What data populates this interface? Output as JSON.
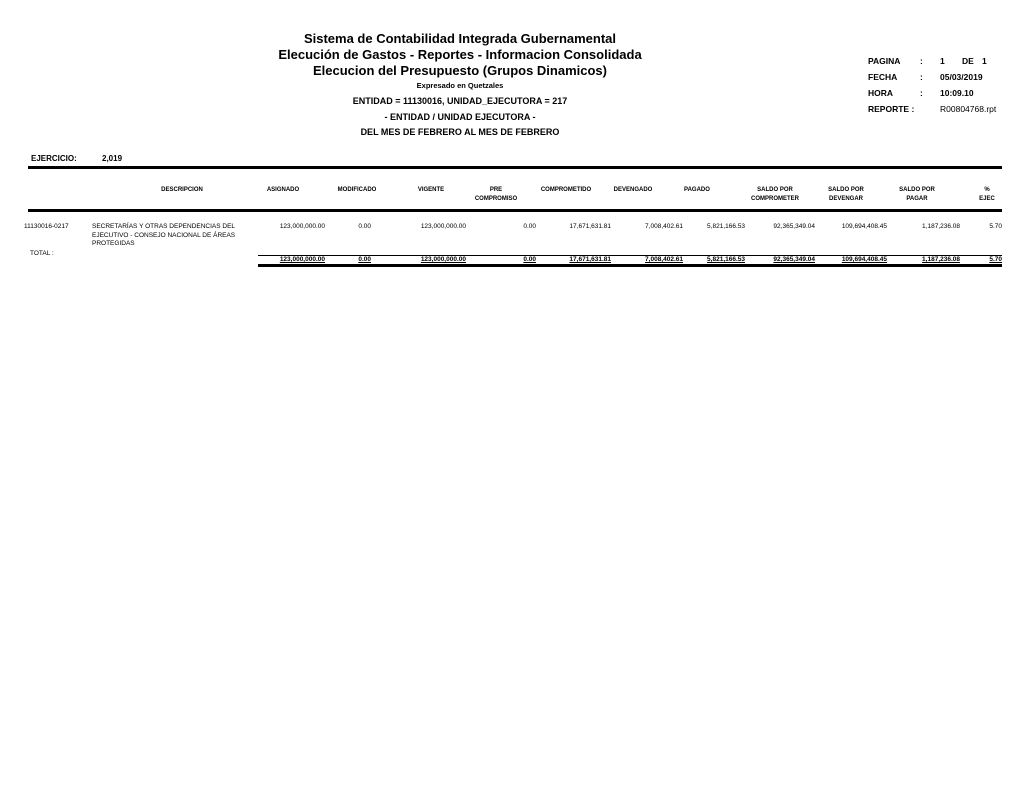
{
  "header": {
    "title1": "Sistema de Contabilidad Integrada Gubernamental",
    "title2": "Elecución de Gastos - Reportes - Informacion Consolidada",
    "title3": "Elecucion del Presupuesto (Grupos Dinamicos)",
    "currency": "Expresado en Quetzales",
    "filter": "ENTIDAD = 11130016, UNIDAD_EJECUTORA = 217",
    "grouping": "- ENTIDAD / UNIDAD EJECUTORA -",
    "period": "DEL MES DE FEBRERO AL MES DE FEBRERO"
  },
  "meta": {
    "pagina_label": "PAGINA",
    "pagina": "1",
    "de_label": "DE",
    "total_pages": "1",
    "fecha_label": "FECHA",
    "fecha": "05/03/2019",
    "hora_label": "HORA",
    "hora": "10:09.10",
    "reporte_label": "REPORTE :",
    "reporte": "R00804768.rpt",
    "sep": ":"
  },
  "ejercicio": {
    "label": "EJERCICIO:",
    "value": "2,019"
  },
  "columns": [
    "DESCRIPCION",
    "ASIGNADO",
    "MODIFICADO",
    "VIGENTE",
    "PRE\nCOMPROMISO",
    "COMPROMETIDO",
    "DEVENGADO",
    "PAGADO",
    "SALDO POR\nCOMPROMETER",
    "SALDO POR\nDEVENGAR",
    "SALDO POR\nPAGAR",
    "%\nEJEC"
  ],
  "row": {
    "code": "11130016-0217",
    "description": "SECRETARÍAS Y OTRAS DEPENDENCIAS DEL EJECUTIVO - CONSEJO NACIONAL DE ÁREAS PROTEGIDAS",
    "values": [
      "123,000,000.00",
      "0.00",
      "123,000,000.00",
      "0.00",
      "17,671,631.81",
      "7,008,402.61",
      "5,821,166.53",
      "92,365,349.04",
      "109,694,408.45",
      "1,187,236.08",
      "5.70"
    ]
  },
  "total": {
    "label": "TOTAL :",
    "values": [
      "123,000,000.00",
      "0.00",
      "123,000,000.00",
      "0.00",
      "17,671,631.81",
      "7,008,402.61",
      "5,821,166.53",
      "92,365,349.04",
      "109,694,408.45",
      "1,187,236.08",
      "5.70"
    ]
  }
}
